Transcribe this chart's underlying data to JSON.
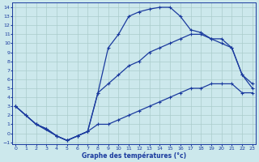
{
  "xlabel": "Graphe des températures (°c)",
  "bg_color": "#cce8ec",
  "grid_color": "#aacccc",
  "line_color": "#1a3a9e",
  "xlim": [
    -0.3,
    23.3
  ],
  "ylim": [
    -1.2,
    14.5
  ],
  "xticks": [
    0,
    1,
    2,
    3,
    4,
    5,
    6,
    7,
    8,
    9,
    10,
    11,
    12,
    13,
    14,
    15,
    16,
    17,
    18,
    19,
    20,
    21,
    22,
    23
  ],
  "yticks": [
    -1,
    0,
    1,
    2,
    3,
    4,
    5,
    6,
    7,
    8,
    9,
    10,
    11,
    12,
    13,
    14
  ],
  "line_top_x": [
    0,
    1,
    2,
    3,
    4,
    5,
    6,
    7,
    8,
    9,
    10,
    11,
    12,
    13,
    14,
    15,
    16,
    17,
    18,
    19,
    20,
    21,
    22,
    23
  ],
  "line_top_y": [
    3.0,
    2.0,
    1.0,
    0.5,
    -0.3,
    -0.8,
    -0.3,
    0.2,
    4.5,
    9.5,
    11.0,
    13.0,
    13.5,
    13.8,
    14.0,
    14.0,
    13.0,
    11.5,
    11.2,
    10.5,
    10.0,
    9.5,
    6.5,
    5.0
  ],
  "line_mid_x": [
    0,
    2,
    4,
    5,
    6,
    7,
    8,
    9,
    10,
    11,
    12,
    13,
    14,
    15,
    16,
    17,
    18,
    19,
    20,
    21,
    22,
    23
  ],
  "line_mid_y": [
    3.0,
    1.0,
    -0.3,
    -0.8,
    -0.3,
    0.2,
    4.5,
    5.5,
    6.5,
    7.5,
    8.0,
    9.0,
    9.5,
    10.0,
    10.5,
    11.0,
    11.0,
    10.5,
    10.5,
    9.5,
    6.5,
    5.5
  ],
  "line_bot_x": [
    0,
    1,
    2,
    3,
    4,
    5,
    6,
    7,
    8,
    9,
    10,
    11,
    12,
    13,
    14,
    15,
    16,
    17,
    18,
    19,
    20,
    21,
    22,
    23
  ],
  "line_bot_y": [
    3.0,
    2.0,
    1.0,
    0.5,
    -0.3,
    -0.8,
    -0.3,
    0.2,
    1.0,
    1.0,
    1.5,
    2.0,
    2.5,
    3.0,
    3.5,
    4.0,
    4.5,
    5.0,
    5.0,
    5.5,
    5.5,
    5.5,
    4.5,
    4.5
  ]
}
